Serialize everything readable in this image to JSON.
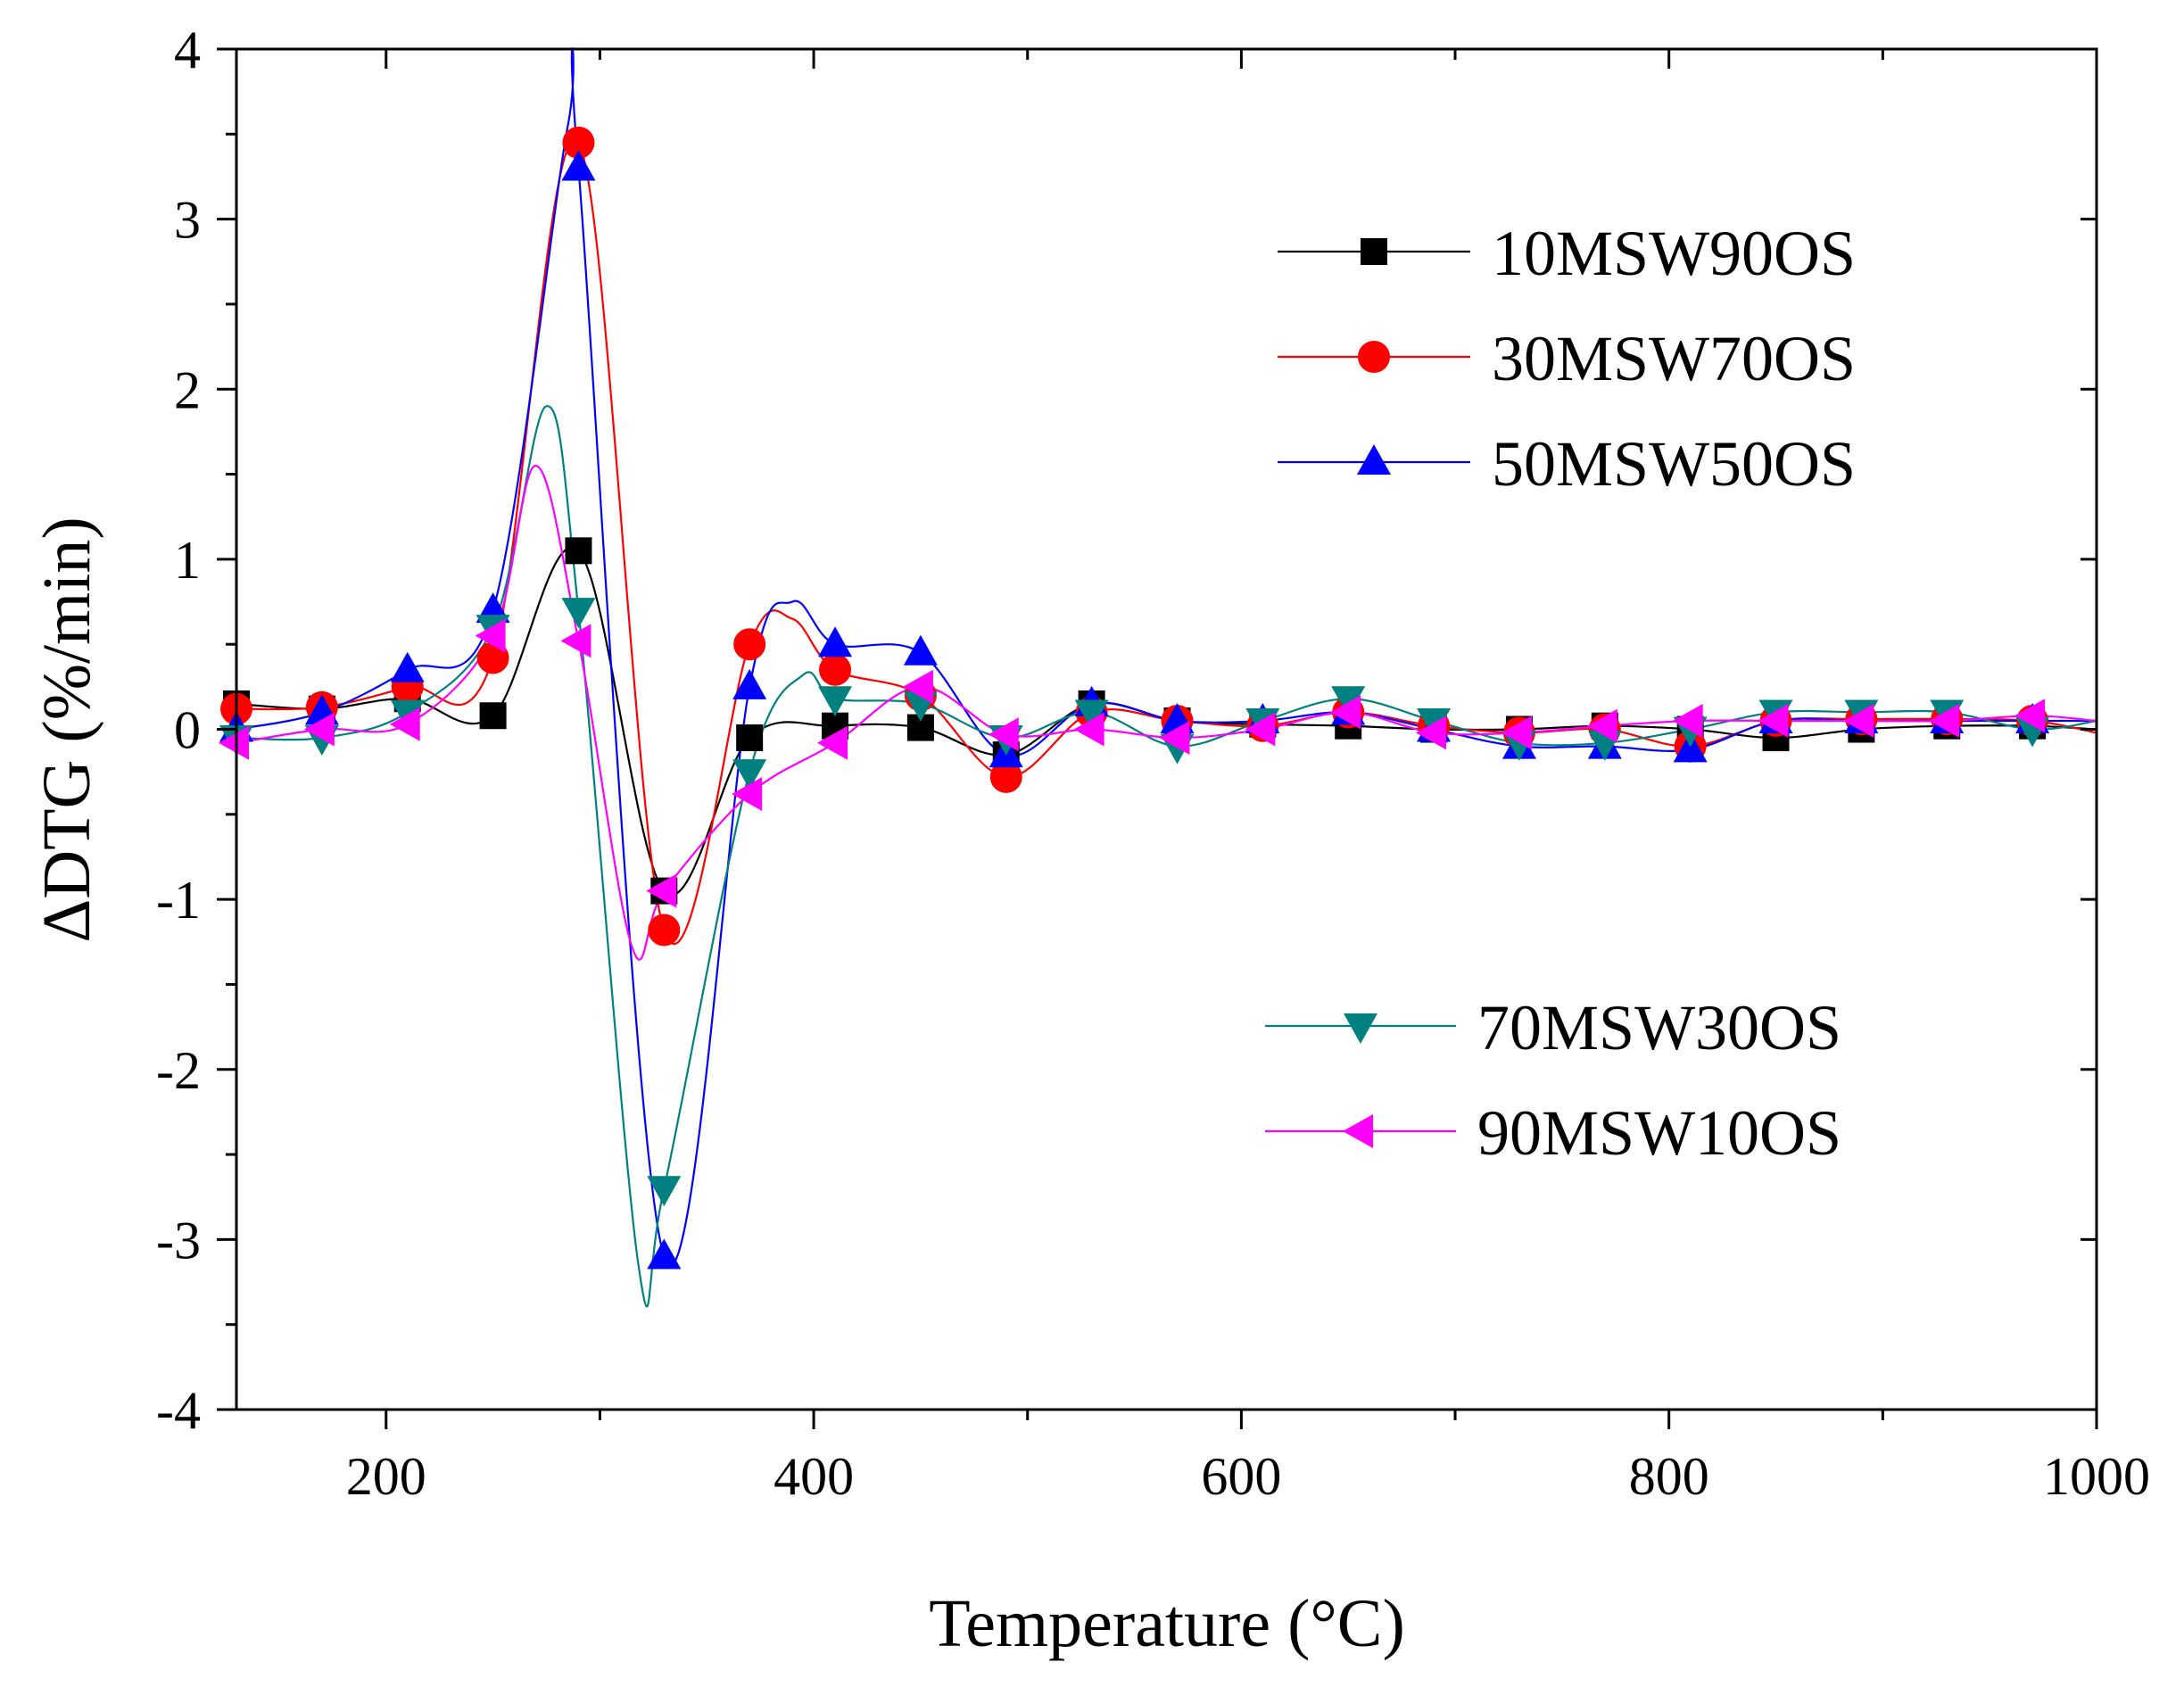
{
  "chart_data": {
    "type": "line",
    "xlabel": "Temperature (°C)",
    "ylabel": "ΔDTG (%/min)",
    "xlim": [
      130,
      1000
    ],
    "ylim": [
      -4,
      4
    ],
    "xticks": [
      200,
      400,
      600,
      800,
      1000
    ],
    "xtick_labels": [
      "200",
      "400",
      "600",
      "800",
      "1000"
    ],
    "yticks": [
      -4,
      -3,
      -2,
      -1,
      0,
      1,
      2,
      3,
      4
    ],
    "ytick_labels": [
      "-4",
      "-3",
      "-2",
      "-1",
      "0",
      "1",
      "2",
      "3",
      "4"
    ],
    "grid": false,
    "legend": [
      {
        "group": "upper-right",
        "entries": [
          "10MSW90OS",
          "30MSW70OS",
          "50MSW50OS"
        ]
      },
      {
        "group": "lower-right",
        "entries": [
          "70MSW30OS",
          "90MSW10OS"
        ]
      }
    ],
    "series": [
      {
        "name": "10MSW90OS",
        "color": "#000000",
        "marker": "square",
        "x": [
          130,
          170,
          210,
          250,
          290,
          330,
          370,
          410,
          450,
          490,
          530,
          570,
          610,
          650,
          690,
          730,
          770,
          810,
          850,
          890,
          930,
          970,
          1000
        ],
        "y": [
          0.15,
          0.12,
          0.18,
          0.08,
          1.05,
          -0.95,
          -0.05,
          0.02,
          0.01,
          -0.15,
          0.15,
          0.05,
          0.03,
          0.02,
          0.0,
          0.0,
          0.02,
          0.0,
          -0.05,
          0.0,
          0.02,
          0.02,
          0.0
        ]
      },
      {
        "name": "30MSW70OS",
        "color": "#ff0000",
        "marker": "circle",
        "x": [
          130,
          170,
          210,
          250,
          290,
          330,
          370,
          390,
          410,
          450,
          490,
          530,
          570,
          610,
          650,
          690,
          730,
          770,
          810,
          850,
          890,
          930,
          970,
          1000
        ],
        "y": [
          0.12,
          0.13,
          0.25,
          0.42,
          3.45,
          -1.18,
          0.5,
          0.65,
          0.35,
          0.2,
          -0.28,
          0.1,
          0.05,
          0.02,
          0.1,
          0.02,
          -0.02,
          0.0,
          -0.1,
          0.05,
          0.06,
          0.06,
          0.05,
          -0.02
        ]
      },
      {
        "name": "50MSW50OS",
        "color": "#0000ff",
        "marker": "triangle-up",
        "x": [
          130,
          170,
          210,
          250,
          285,
          290,
          330,
          370,
          390,
          410,
          450,
          490,
          530,
          570,
          610,
          650,
          690,
          730,
          770,
          810,
          850,
          890,
          930,
          970,
          1000
        ],
        "y": [
          0.0,
          0.1,
          0.35,
          0.7,
          3.55,
          3.3,
          -3.1,
          0.25,
          0.75,
          0.5,
          0.45,
          -0.15,
          0.15,
          0.05,
          0.05,
          0.1,
          0.0,
          -0.1,
          -0.1,
          -0.12,
          0.05,
          0.05,
          0.05,
          0.05,
          0.05
        ]
      },
      {
        "name": "70MSW30OS",
        "color": "#008080",
        "marker": "triangle-down",
        "x": [
          130,
          170,
          210,
          250,
          275,
          290,
          318,
          330,
          370,
          395,
          410,
          450,
          490,
          530,
          570,
          610,
          650,
          690,
          730,
          770,
          810,
          850,
          890,
          930,
          970,
          1000
        ],
        "y": [
          -0.05,
          -0.05,
          0.1,
          0.6,
          1.9,
          0.7,
          -3.15,
          -2.7,
          -0.25,
          0.32,
          0.18,
          0.15,
          -0.05,
          0.1,
          -0.1,
          0.05,
          0.18,
          0.05,
          -0.08,
          -0.08,
          0.0,
          0.1,
          0.1,
          0.1,
          0.0,
          0.05
        ]
      },
      {
        "name": "90MSW10OS",
        "color": "#ff00ff",
        "marker": "triangle-left",
        "x": [
          130,
          170,
          210,
          250,
          270,
          290,
          315,
          330,
          370,
          410,
          450,
          490,
          530,
          570,
          610,
          650,
          690,
          730,
          770,
          810,
          850,
          890,
          930,
          970,
          1000
        ],
        "y": [
          -0.08,
          0.0,
          0.03,
          0.55,
          1.55,
          0.52,
          -1.28,
          -0.95,
          -0.38,
          -0.08,
          0.25,
          -0.03,
          0.0,
          -0.05,
          0.0,
          0.1,
          -0.02,
          -0.02,
          0.02,
          0.05,
          0.05,
          0.05,
          0.05,
          0.08,
          0.05
        ]
      }
    ]
  }
}
